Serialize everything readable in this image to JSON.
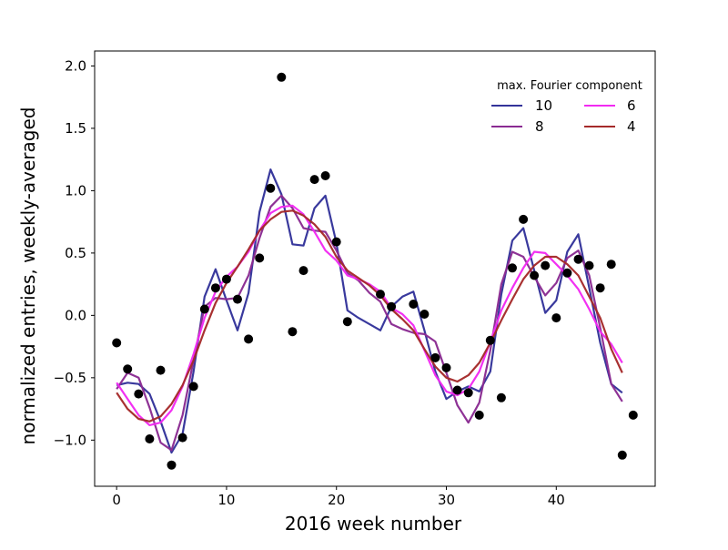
{
  "chart_data": {
    "type": "line",
    "title": "",
    "xlabel": "2016 week number",
    "ylabel": "normalized entries, weekly-averaged",
    "xlim": [
      -2,
      49
    ],
    "ylim": [
      -1.37,
      2.12
    ],
    "xticks": [
      0,
      10,
      20,
      30,
      40
    ],
    "xtick_labels": [
      "0",
      "10",
      "20",
      "30",
      "40"
    ],
    "yticks": [
      -1.0,
      -0.5,
      0.0,
      0.5,
      1.0,
      1.5,
      2.0
    ],
    "ytick_labels": [
      "−1.0",
      "−0.5",
      "0.0",
      "0.5",
      "1.0",
      "1.5",
      "2.0"
    ],
    "grid": false,
    "legend": {
      "title": "max. Fourier component",
      "placement": "top-right",
      "columns": 2
    },
    "scatter": {
      "name": "",
      "color": "#000000",
      "x": [
        0,
        1,
        2,
        3,
        4,
        5,
        6,
        7,
        8,
        9,
        10,
        11,
        12,
        13,
        14,
        15,
        16,
        17,
        18,
        19,
        20,
        21,
        24,
        25,
        27,
        28,
        29,
        30,
        31,
        32,
        33,
        34,
        35,
        36,
        37,
        38,
        39,
        40,
        41,
        42,
        43,
        44,
        45,
        46,
        47
      ],
      "y": [
        -0.22,
        -0.43,
        -0.63,
        -0.99,
        -0.44,
        -1.2,
        -0.98,
        -0.57,
        0.05,
        0.22,
        0.29,
        0.13,
        -0.19,
        0.46,
        1.02,
        1.91,
        -0.13,
        0.36,
        1.09,
        1.12,
        0.59,
        -0.05,
        0.17,
        0.07,
        0.09,
        0.01,
        -0.34,
        -0.42,
        -0.6,
        -0.62,
        -0.8,
        -0.2,
        -0.66,
        0.38,
        0.77,
        0.32,
        0.4,
        -0.02,
        0.34,
        0.45,
        0.4,
        0.22,
        0.41,
        -1.12,
        -0.8
      ]
    },
    "series": [
      {
        "name": "10",
        "color": "#33339a",
        "x": [
          0,
          1,
          2,
          3,
          4,
          5,
          6,
          7,
          8,
          9,
          10,
          11,
          12,
          13,
          14,
          15,
          16,
          17,
          18,
          19,
          20,
          21,
          22,
          23,
          24,
          25,
          26,
          27,
          28,
          29,
          30,
          31,
          32,
          33,
          34,
          35,
          36,
          37,
          38,
          39,
          40,
          41,
          42,
          43,
          44,
          45,
          46
        ],
        "y": [
          -0.56,
          -0.54,
          -0.55,
          -0.63,
          -0.85,
          -1.1,
          -0.95,
          -0.45,
          0.15,
          0.37,
          0.12,
          -0.12,
          0.18,
          0.83,
          1.17,
          0.97,
          0.57,
          0.56,
          0.86,
          0.96,
          0.58,
          0.04,
          -0.02,
          -0.07,
          -0.12,
          0.07,
          0.15,
          0.19,
          -0.12,
          -0.45,
          -0.67,
          -0.61,
          -0.57,
          -0.61,
          -0.45,
          0.17,
          0.6,
          0.7,
          0.36,
          0.02,
          0.12,
          0.51,
          0.65,
          0.22,
          -0.22,
          -0.55,
          -0.62
        ]
      },
      {
        "name": "8",
        "color": "#8a2b92",
        "x": [
          0,
          1,
          2,
          3,
          4,
          5,
          6,
          7,
          8,
          9,
          10,
          11,
          12,
          13,
          14,
          15,
          16,
          17,
          18,
          19,
          20,
          21,
          22,
          23,
          24,
          25,
          26,
          27,
          28,
          29,
          30,
          31,
          32,
          33,
          34,
          35,
          36,
          37,
          38,
          39,
          40,
          41,
          42,
          43,
          44,
          45,
          46
        ],
        "y": [
          -0.59,
          -0.46,
          -0.5,
          -0.74,
          -1.02,
          -1.08,
          -0.8,
          -0.36,
          0.07,
          0.14,
          0.13,
          0.14,
          0.32,
          0.62,
          0.87,
          0.96,
          0.86,
          0.7,
          0.68,
          0.67,
          0.52,
          0.34,
          0.28,
          0.18,
          0.11,
          -0.07,
          -0.11,
          -0.14,
          -0.15,
          -0.21,
          -0.46,
          -0.72,
          -0.86,
          -0.7,
          -0.28,
          0.25,
          0.51,
          0.47,
          0.31,
          0.16,
          0.26,
          0.46,
          0.52,
          0.32,
          -0.1,
          -0.55,
          -0.69
        ]
      },
      {
        "name": "6",
        "color": "#f22af2",
        "x": [
          0,
          1,
          2,
          3,
          4,
          5,
          6,
          7,
          8,
          9,
          10,
          11,
          12,
          13,
          14,
          15,
          16,
          17,
          18,
          19,
          20,
          21,
          22,
          23,
          24,
          25,
          26,
          27,
          28,
          29,
          30,
          31,
          32,
          33,
          34,
          35,
          36,
          37,
          38,
          39,
          40,
          41,
          42,
          43,
          44,
          45,
          46
        ],
        "y": [
          -0.54,
          -0.67,
          -0.8,
          -0.88,
          -0.86,
          -0.76,
          -0.57,
          -0.31,
          -0.02,
          0.19,
          0.31,
          0.39,
          0.51,
          0.68,
          0.82,
          0.87,
          0.88,
          0.81,
          0.67,
          0.52,
          0.44,
          0.32,
          0.29,
          0.25,
          0.19,
          0.06,
          0.01,
          -0.08,
          -0.28,
          -0.48,
          -0.61,
          -0.64,
          -0.59,
          -0.45,
          -0.21,
          0.04,
          0.22,
          0.38,
          0.51,
          0.5,
          0.41,
          0.32,
          0.21,
          0.05,
          -0.13,
          -0.23,
          -0.38
        ]
      },
      {
        "name": "4",
        "color": "#a52a2a",
        "x": [
          0,
          1,
          2,
          3,
          4,
          5,
          6,
          7,
          8,
          9,
          10,
          11,
          12,
          13,
          14,
          15,
          16,
          17,
          18,
          19,
          20,
          21,
          22,
          23,
          24,
          25,
          26,
          27,
          28,
          29,
          30,
          31,
          32,
          33,
          34,
          35,
          36,
          37,
          38,
          39,
          40,
          41,
          42,
          43,
          44,
          45,
          46
        ],
        "y": [
          -0.62,
          -0.75,
          -0.83,
          -0.85,
          -0.81,
          -0.71,
          -0.56,
          -0.36,
          -0.12,
          0.1,
          0.26,
          0.39,
          0.53,
          0.68,
          0.77,
          0.83,
          0.84,
          0.8,
          0.73,
          0.63,
          0.47,
          0.36,
          0.3,
          0.24,
          0.16,
          0.05,
          -0.03,
          -0.12,
          -0.27,
          -0.41,
          -0.5,
          -0.53,
          -0.48,
          -0.38,
          -0.22,
          -0.04,
          0.13,
          0.29,
          0.4,
          0.47,
          0.47,
          0.41,
          0.32,
          0.15,
          -0.02,
          -0.27,
          -0.46
        ]
      }
    ]
  }
}
